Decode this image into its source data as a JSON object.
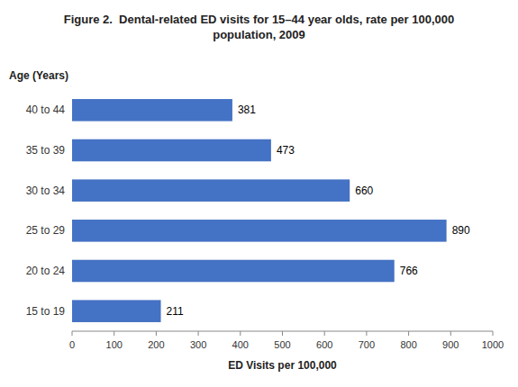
{
  "chart_data": {
    "type": "bar",
    "orientation": "horizontal",
    "title": "Figure 2.  Dental-related ED visits for 15–44 year olds, rate per 100,000\npopulation, 2009",
    "categories": [
      "15 to 19",
      "20 to 24",
      "25 to 29",
      "30 to 34",
      "35 to 39",
      "40 to 44"
    ],
    "values": [
      211,
      766,
      890,
      660,
      473,
      381
    ],
    "color": "#4472C4",
    "xlabel": "ED Visits per 100,000",
    "ylabel": "Age (Years)",
    "xlim": [
      0,
      1000
    ],
    "xticks": [
      0,
      100,
      200,
      300,
      400,
      500,
      600,
      700,
      800,
      900,
      1000
    ],
    "data_labels": true,
    "grid": false
  }
}
